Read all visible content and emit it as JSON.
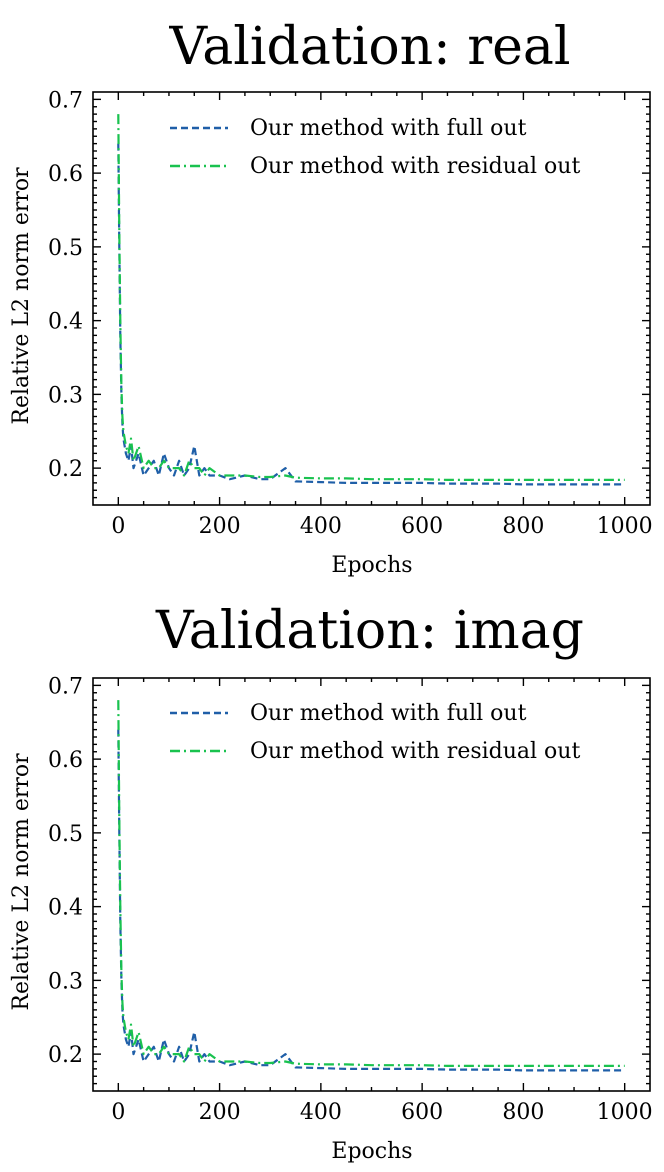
{
  "chart_data": [
    {
      "type": "line",
      "title": "Validation: real",
      "xlabel": "Epochs",
      "ylabel": "Relative L2 norm error",
      "xlim": [
        -50,
        1050
      ],
      "ylim": [
        0.15,
        0.71
      ],
      "xticks": [
        0,
        200,
        400,
        600,
        800,
        1000
      ],
      "yticks": [
        0.2,
        0.3,
        0.4,
        0.5,
        0.6,
        0.7
      ],
      "xtick_labels": [
        "0",
        "200",
        "400",
        "600",
        "800",
        "1000"
      ],
      "ytick_labels": [
        "0.2",
        "0.3",
        "0.4",
        "0.5",
        "0.6",
        "0.7"
      ],
      "legend_position": "top-right",
      "series": [
        {
          "name": "Our method with full out",
          "color": "#1f5fa8",
          "dash": "dashed",
          "x": [
            0,
            2,
            4,
            6,
            8,
            10,
            15,
            20,
            25,
            30,
            40,
            50,
            60,
            70,
            80,
            90,
            100,
            110,
            120,
            130,
            140,
            150,
            160,
            170,
            180,
            200,
            220,
            250,
            280,
            300,
            330,
            350,
            400,
            450,
            500,
            550,
            600,
            650,
            700,
            750,
            800,
            850,
            900,
            950,
            1000
          ],
          "y": [
            0.64,
            0.5,
            0.38,
            0.3,
            0.26,
            0.24,
            0.22,
            0.21,
            0.23,
            0.2,
            0.22,
            0.19,
            0.2,
            0.21,
            0.19,
            0.22,
            0.2,
            0.19,
            0.21,
            0.19,
            0.2,
            0.23,
            0.19,
            0.2,
            0.19,
            0.19,
            0.185,
            0.19,
            0.185,
            0.185,
            0.2,
            0.182,
            0.181,
            0.18,
            0.18,
            0.18,
            0.18,
            0.179,
            0.179,
            0.179,
            0.178,
            0.178,
            0.178,
            0.178,
            0.178
          ]
        },
        {
          "name": "Our method with residual out",
          "color": "#19c24f",
          "dash": "dashdot",
          "x": [
            0,
            2,
            4,
            6,
            8,
            10,
            15,
            20,
            25,
            30,
            40,
            50,
            60,
            70,
            80,
            90,
            100,
            110,
            120,
            130,
            140,
            150,
            160,
            170,
            180,
            200,
            220,
            250,
            280,
            300,
            330,
            350,
            400,
            450,
            500,
            550,
            600,
            650,
            700,
            750,
            800,
            850,
            900,
            950,
            1000
          ],
          "y": [
            0.68,
            0.52,
            0.4,
            0.31,
            0.27,
            0.25,
            0.23,
            0.22,
            0.24,
            0.21,
            0.23,
            0.2,
            0.21,
            0.2,
            0.2,
            0.21,
            0.2,
            0.2,
            0.2,
            0.19,
            0.21,
            0.2,
            0.2,
            0.19,
            0.2,
            0.19,
            0.19,
            0.19,
            0.188,
            0.188,
            0.19,
            0.187,
            0.186,
            0.186,
            0.185,
            0.185,
            0.185,
            0.184,
            0.184,
            0.184,
            0.184,
            0.184,
            0.184,
            0.184,
            0.184
          ]
        }
      ]
    },
    {
      "type": "line",
      "title": "Validation: imag",
      "xlabel": "Epochs",
      "ylabel": "Relative L2 norm error",
      "xlim": [
        -50,
        1050
      ],
      "ylim": [
        0.15,
        0.71
      ],
      "xticks": [
        0,
        200,
        400,
        600,
        800,
        1000
      ],
      "yticks": [
        0.2,
        0.3,
        0.4,
        0.5,
        0.6,
        0.7
      ],
      "xtick_labels": [
        "0",
        "200",
        "400",
        "600",
        "800",
        "1000"
      ],
      "ytick_labels": [
        "0.2",
        "0.3",
        "0.4",
        "0.5",
        "0.6",
        "0.7"
      ],
      "legend_position": "top-right",
      "series": [
        {
          "name": "Our method with full out",
          "color": "#1f5fa8",
          "dash": "dashed",
          "x": [
            0,
            2,
            4,
            6,
            8,
            10,
            15,
            20,
            25,
            30,
            40,
            50,
            60,
            70,
            80,
            90,
            100,
            110,
            120,
            130,
            140,
            150,
            160,
            170,
            180,
            200,
            220,
            250,
            280,
            300,
            330,
            350,
            400,
            450,
            500,
            550,
            600,
            650,
            700,
            750,
            800,
            850,
            900,
            950,
            1000
          ],
          "y": [
            0.64,
            0.5,
            0.38,
            0.3,
            0.26,
            0.24,
            0.22,
            0.21,
            0.23,
            0.2,
            0.22,
            0.19,
            0.2,
            0.21,
            0.19,
            0.22,
            0.2,
            0.19,
            0.21,
            0.19,
            0.2,
            0.23,
            0.19,
            0.2,
            0.19,
            0.19,
            0.185,
            0.19,
            0.185,
            0.185,
            0.2,
            0.182,
            0.181,
            0.18,
            0.18,
            0.18,
            0.18,
            0.179,
            0.179,
            0.179,
            0.178,
            0.178,
            0.178,
            0.178,
            0.178
          ]
        },
        {
          "name": "Our method with residual out",
          "color": "#19c24f",
          "dash": "dashdot",
          "x": [
            0,
            2,
            4,
            6,
            8,
            10,
            15,
            20,
            25,
            30,
            40,
            50,
            60,
            70,
            80,
            90,
            100,
            110,
            120,
            130,
            140,
            150,
            160,
            170,
            180,
            200,
            220,
            250,
            280,
            300,
            330,
            350,
            400,
            450,
            500,
            550,
            600,
            650,
            700,
            750,
            800,
            850,
            900,
            950,
            1000
          ],
          "y": [
            0.68,
            0.52,
            0.4,
            0.31,
            0.27,
            0.25,
            0.23,
            0.22,
            0.24,
            0.21,
            0.23,
            0.2,
            0.21,
            0.2,
            0.2,
            0.21,
            0.2,
            0.2,
            0.2,
            0.19,
            0.21,
            0.2,
            0.2,
            0.19,
            0.2,
            0.19,
            0.19,
            0.19,
            0.188,
            0.188,
            0.19,
            0.187,
            0.186,
            0.186,
            0.185,
            0.185,
            0.185,
            0.184,
            0.184,
            0.184,
            0.184,
            0.184,
            0.184,
            0.184,
            0.184
          ]
        }
      ]
    }
  ]
}
